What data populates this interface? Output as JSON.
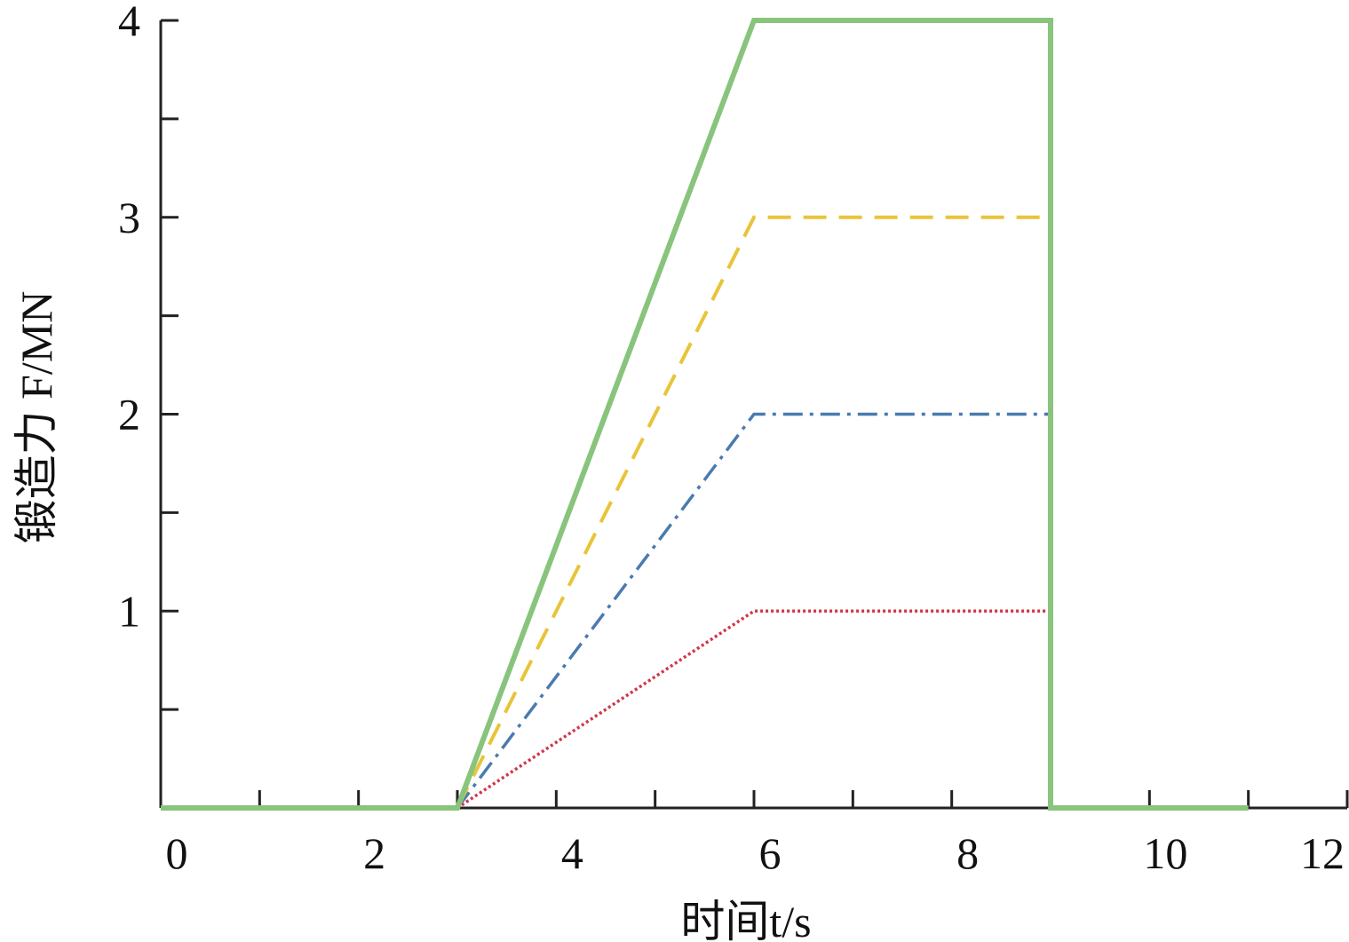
{
  "chart_data": {
    "type": "line",
    "xlabel": "时间t/s",
    "ylabel": "锻造力 F/MN",
    "xlim": [
      0,
      12
    ],
    "xticks": [
      0,
      2,
      4,
      6,
      8,
      10,
      12
    ],
    "x_minor_ticks": [
      1,
      3,
      5,
      7,
      9,
      11
    ],
    "ylim": [
      0,
      4
    ],
    "yticks": [
      1,
      2,
      3,
      4
    ],
    "y_minor_ticks": [
      0.5,
      1.5,
      2.5,
      3.5
    ],
    "grid": false,
    "series": [
      {
        "color": "#88c47c",
        "dash": "solid",
        "x": [
          0,
          3,
          6,
          9,
          9,
          11
        ],
        "values": [
          0,
          0,
          4,
          4,
          0,
          0
        ]
      },
      {
        "color": "#e8c43a",
        "dash": "dashed",
        "x": [
          3,
          6,
          9
        ],
        "values": [
          0,
          3,
          3
        ]
      },
      {
        "color": "#4a7ab0",
        "dash": "dashdot",
        "x": [
          3,
          6,
          9
        ],
        "values": [
          0,
          2,
          2
        ]
      },
      {
        "color": "#d0384a",
        "dash": "dotted",
        "x": [
          3,
          6,
          9
        ],
        "values": [
          0,
          1,
          1
        ]
      }
    ]
  }
}
